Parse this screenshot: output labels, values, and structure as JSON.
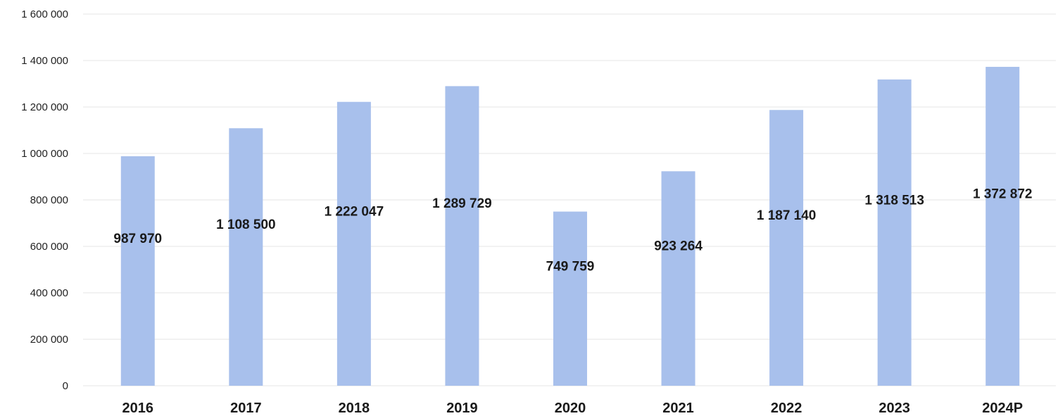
{
  "chart_data": {
    "type": "bar",
    "title": "",
    "xlabel": "",
    "ylabel": "",
    "categories": [
      "2016",
      "2017",
      "2018",
      "2019",
      "2020",
      "2021",
      "2022",
      "2023",
      "2024P"
    ],
    "values": [
      987970,
      1108500,
      1222047,
      1289729,
      749759,
      923264,
      1187140,
      1318513,
      1372872
    ],
    "data_labels": [
      "987 970",
      "1 108 500",
      "1 222 047",
      "1 289 729",
      "749 759",
      "923 264",
      "1 187 140",
      "1 318 513",
      "1 372 872"
    ],
    "ylim": [
      0,
      1600000
    ],
    "yticks": [
      0,
      200000,
      400000,
      600000,
      800000,
      1000000,
      1200000,
      1400000,
      1600000
    ],
    "ytick_labels": [
      "0",
      "200 000",
      "400 000",
      "600 000",
      "800 000",
      "1 000 000",
      "1 200 000",
      "1 400 000",
      "1 600 000"
    ],
    "grid": true,
    "legend": "none",
    "colors": {
      "bar": "#a8c0ec",
      "grid": "#e6e6e6",
      "text": "#1a1a1a"
    }
  }
}
